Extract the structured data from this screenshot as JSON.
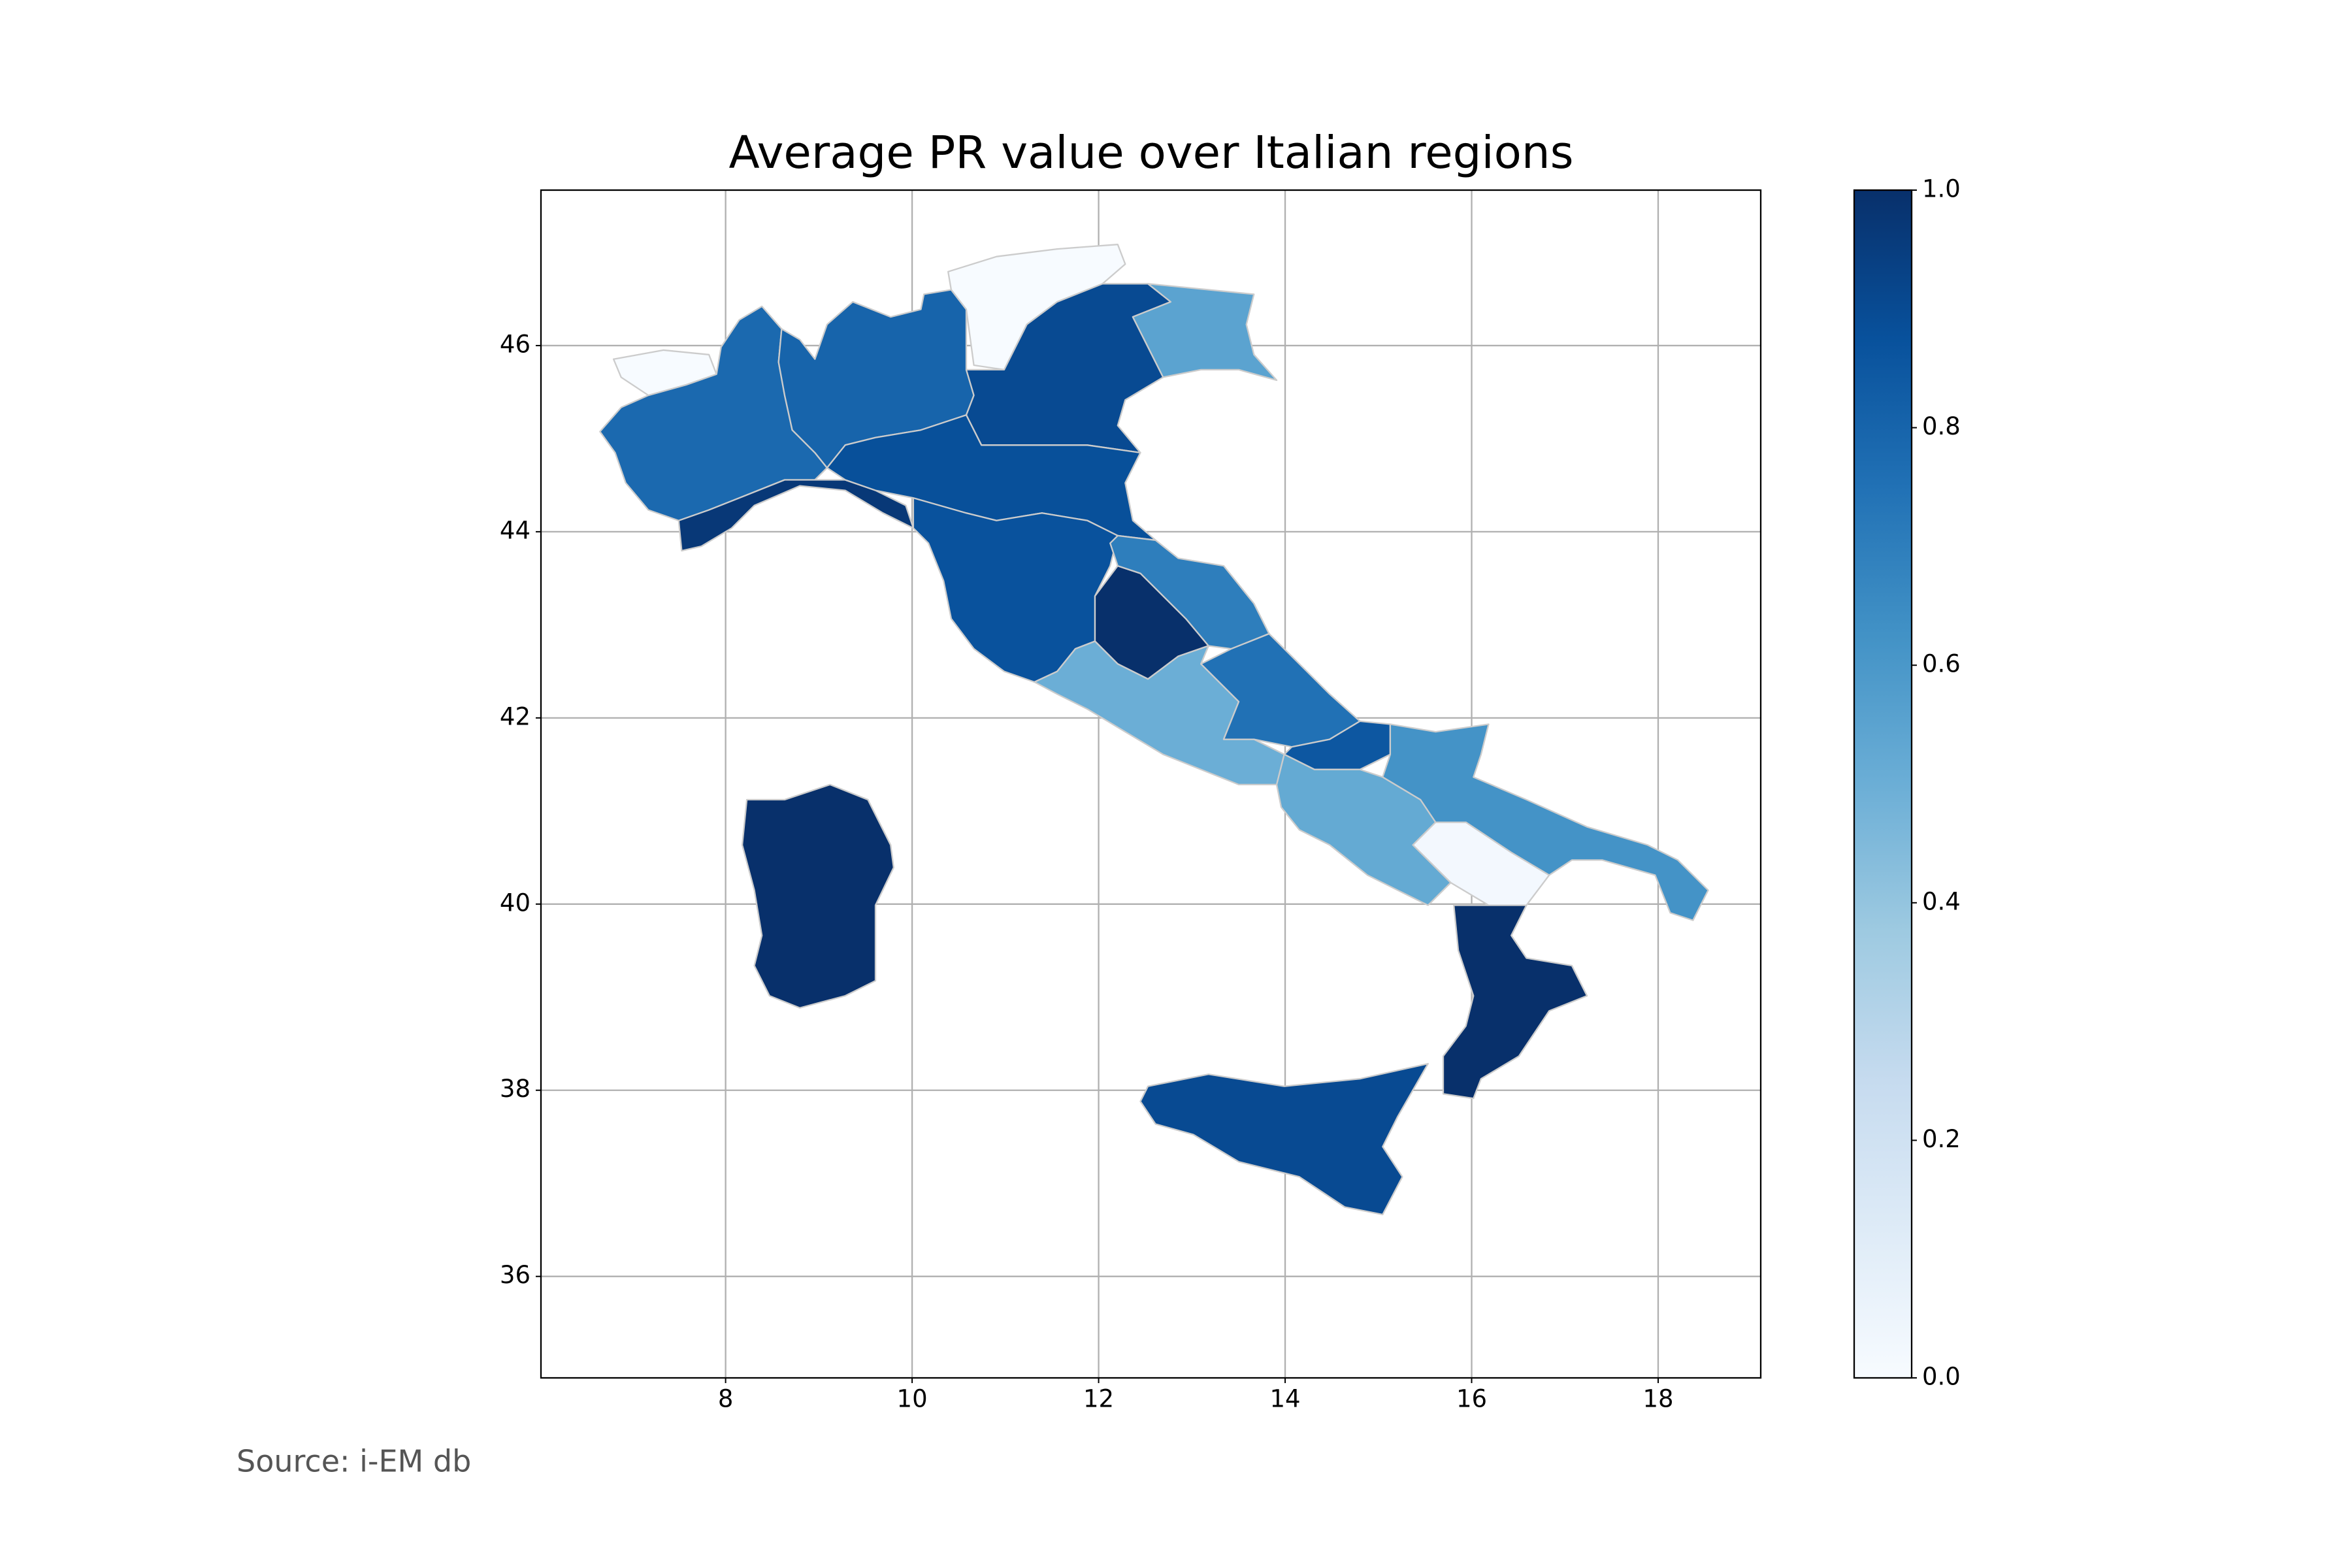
{
  "chart_data": {
    "type": "choropleth",
    "title": "Average PR value over Italian regions",
    "source": "Source: i-EM db",
    "colormap": "Blues",
    "values": [
      0.0,
      0.78,
      0.8,
      0.0,
      0.9,
      0.55,
      0.97,
      0.88,
      0.87,
      1.0,
      0.7,
      0.5,
      0.75,
      0.85,
      0.52,
      0.62,
      0.02,
      1.0,
      0.9,
      1.0
    ],
    "xlim": [
      6.02,
      19.1
    ],
    "ylim": [
      34.91,
      47.67
    ],
    "xticks": [
      8,
      10,
      12,
      14,
      16,
      18
    ],
    "yticks": [
      36,
      38,
      40,
      42,
      44,
      46
    ],
    "grid": true,
    "colorbar_lim": [
      0,
      1
    ],
    "colorbar_ticks": [
      {
        "value": 0,
        "label": "0.0"
      },
      0.2,
      0.4,
      0.6,
      0.8,
      {
        "value": 1,
        "label": "1.0"
      }
    ]
  }
}
